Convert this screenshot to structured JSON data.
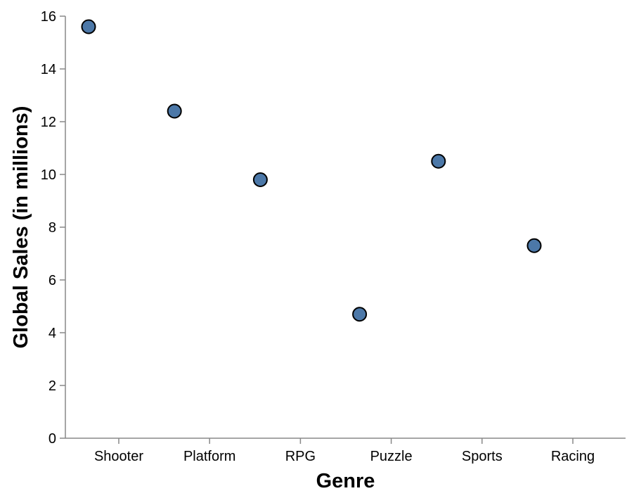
{
  "chart_data": {
    "type": "scatter",
    "xlabel": "Genre",
    "ylabel": "Global Sales (in millions)",
    "categories": [
      "Shooter",
      "Platform",
      "RPG",
      "Puzzle",
      "Sports",
      "Racing"
    ],
    "ylim": [
      0,
      16
    ],
    "yticks": [
      0,
      2,
      4,
      6,
      8,
      10,
      12,
      14,
      16
    ],
    "grid": false,
    "points": [
      {
        "x": "Shooter",
        "y": 15.6
      },
      {
        "x": "Platform",
        "y": 12.4
      },
      {
        "x": "RPG",
        "y": 9.8
      },
      {
        "x": "Puzzle",
        "y": 4.7
      },
      {
        "x": "Sports",
        "y": 10.5
      },
      {
        "x": "Racing",
        "y": 7.3
      }
    ],
    "colors": {
      "point": "#4c78a8"
    }
  }
}
